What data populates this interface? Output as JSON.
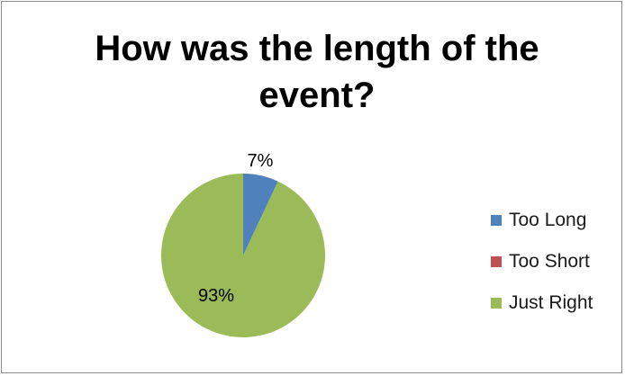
{
  "chart_data": {
    "type": "pie",
    "title": "How was the length of the event?",
    "categories": [
      "Too Long",
      "Too Short",
      "Just Right"
    ],
    "values": [
      7,
      0,
      93
    ],
    "data_labels": [
      "7%",
      "",
      "93%"
    ],
    "colors": [
      "#4f81bd",
      "#c0504d",
      "#9bbb59"
    ],
    "legend_position": "right"
  }
}
